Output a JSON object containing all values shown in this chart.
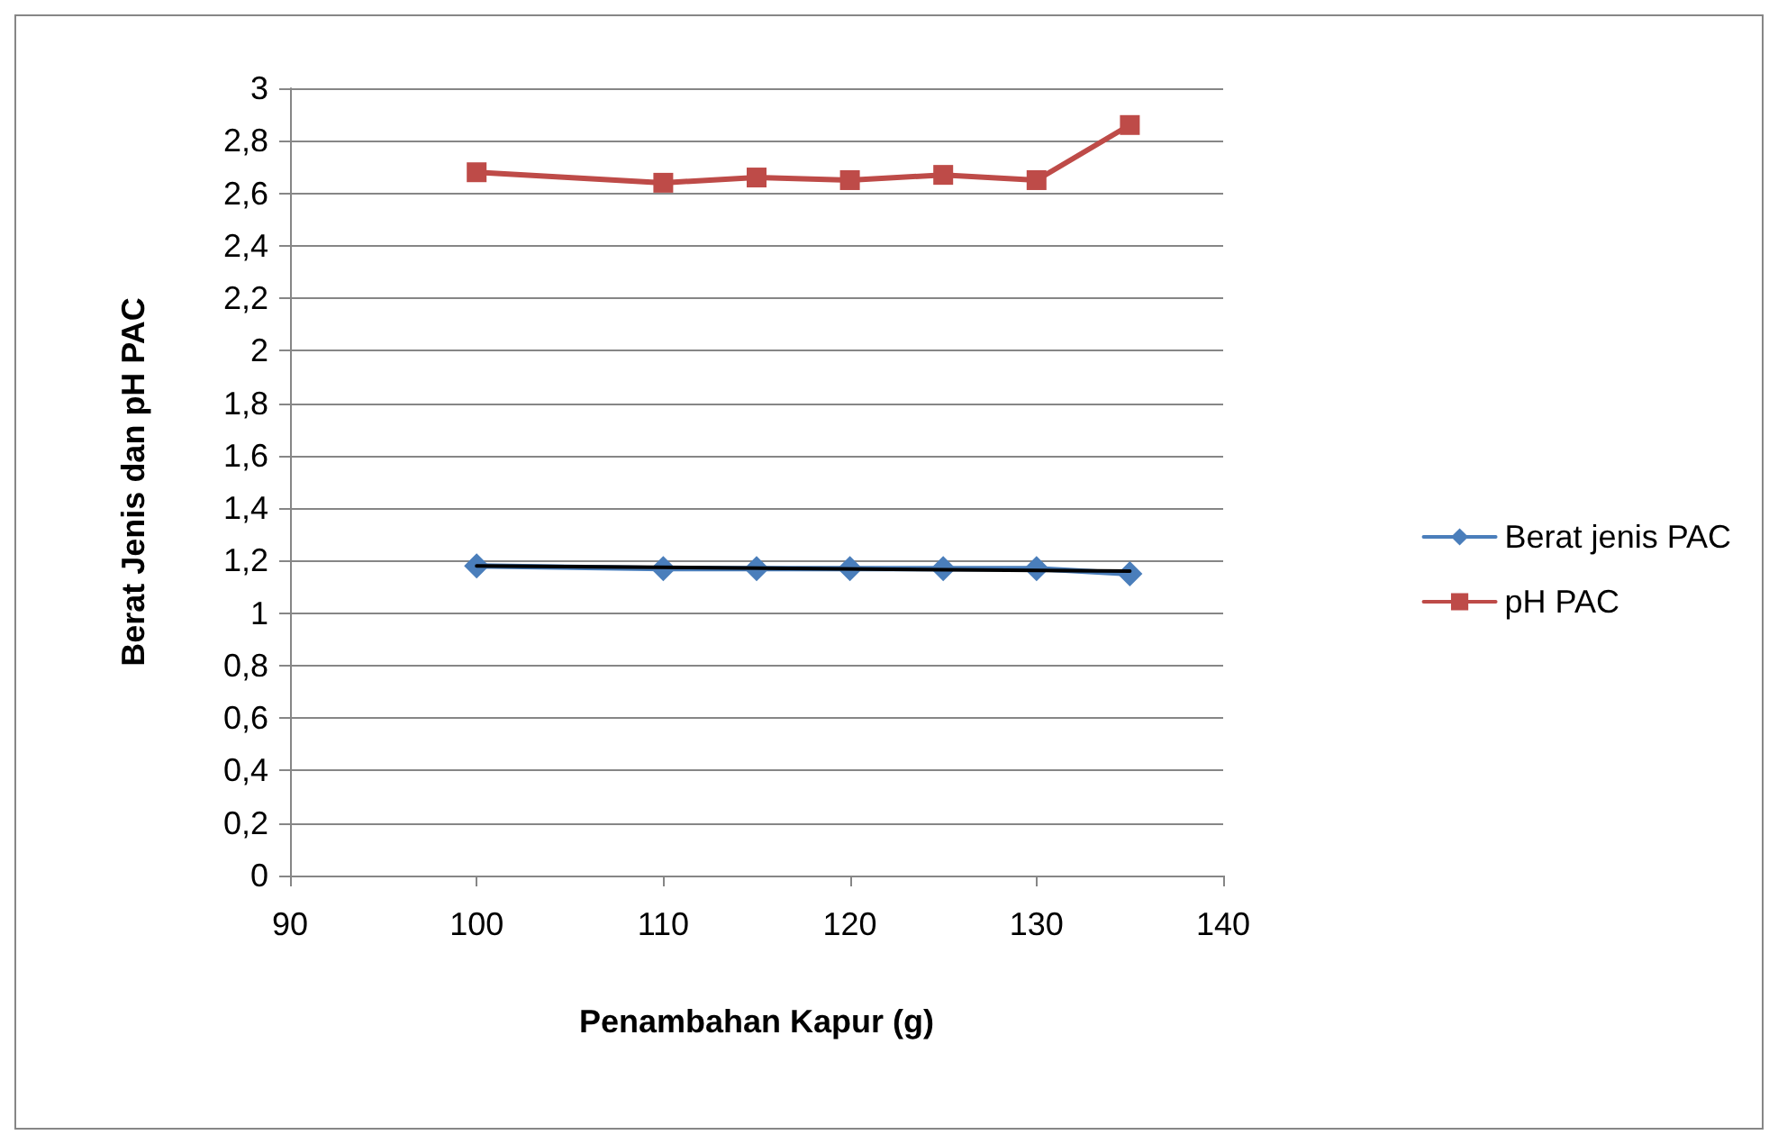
{
  "chart_data": {
    "type": "line",
    "xlabel": "Penambahan Kapur (g)",
    "ylabel": "Berat Jenis dan pH PAC",
    "x": [
      100,
      110,
      115,
      120,
      125,
      130,
      135
    ],
    "series": [
      {
        "name": "Berat jenis PAC",
        "color": "#4a7ebb",
        "marker": "diamond",
        "values": [
          1.18,
          1.17,
          1.17,
          1.17,
          1.17,
          1.17,
          1.15
        ]
      },
      {
        "name": "pH PAC",
        "color": "#be4b48",
        "marker": "square",
        "values": [
          2.68,
          2.64,
          2.66,
          2.65,
          2.67,
          2.65,
          2.86
        ]
      },
      {
        "type": "line",
        "color": "#000000",
        "marker": "none",
        "x": [
          100,
          135
        ],
        "values": [
          1.18,
          1.16
        ]
      }
    ],
    "xlim": [
      90,
      140
    ],
    "xticks": [
      90,
      100,
      110,
      120,
      130,
      140
    ],
    "ylim": [
      0,
      3
    ],
    "yticks": [
      0,
      {
        "value": 0.2,
        "label": "0,2"
      },
      {
        "value": 0.4,
        "label": "0,4"
      },
      {
        "value": 0.6,
        "label": "0,6"
      },
      {
        "value": 0.8,
        "label": "0,8"
      },
      1,
      {
        "value": 1.2,
        "label": "1,2"
      },
      {
        "value": 1.4,
        "label": "1,4"
      },
      {
        "value": 1.6,
        "label": "1,6"
      },
      {
        "value": 1.8,
        "label": "1,8"
      },
      2,
      {
        "value": 2.2,
        "label": "2,2"
      },
      {
        "value": 2.4,
        "label": "2,4"
      },
      {
        "value": 2.6,
        "label": "2,6"
      },
      {
        "value": 2.8,
        "label": "2,8"
      },
      3
    ],
    "grid": "y",
    "legend": "right"
  }
}
